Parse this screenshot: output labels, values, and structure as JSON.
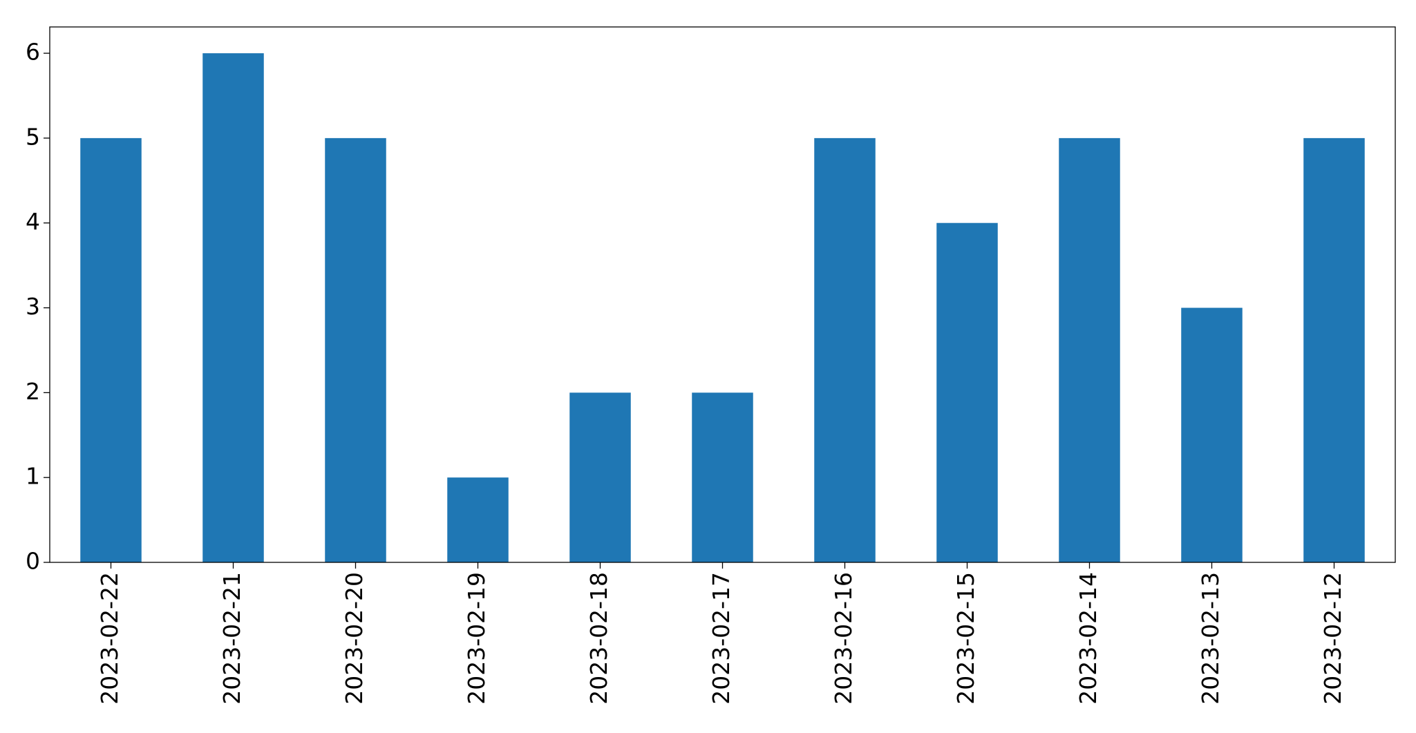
{
  "chart_data": {
    "type": "bar",
    "categories": [
      "2023-02-22",
      "2023-02-21",
      "2023-02-20",
      "2023-02-19",
      "2023-02-18",
      "2023-02-17",
      "2023-02-16",
      "2023-02-15",
      "2023-02-14",
      "2023-02-13",
      "2023-02-12"
    ],
    "values": [
      5,
      6,
      5,
      1,
      2,
      2,
      5,
      4,
      5,
      3,
      5
    ],
    "color": "#1f77b4",
    "ylim": [
      0,
      6.31
    ],
    "yticks": [
      0,
      1,
      2,
      3,
      4,
      5,
      6
    ],
    "grid": false
  }
}
